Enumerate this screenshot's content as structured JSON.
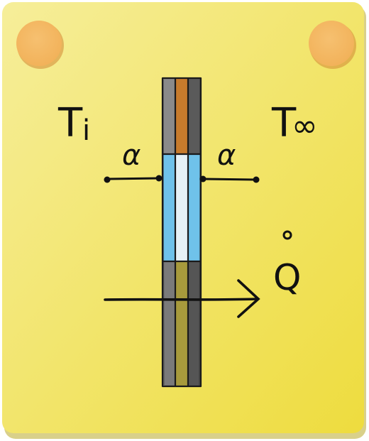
{
  "card": {
    "background_top": "#f6ee9a",
    "background_bottom": "#eedc3e",
    "shadow": "#b9a92a"
  },
  "pins": {
    "color": "#f2b25a",
    "shadow": "#d68f3a"
  },
  "labels": {
    "inside_temperature": "T",
    "inside_subscript": "i",
    "outside_temperature": "T",
    "outside_subscript": "∞",
    "heat_flow_symbol": "Q",
    "coefficient_left": "α",
    "coefficient_right": "α"
  },
  "wall_layers": {
    "upper_section": [
      "#8a8a8a",
      "#c77b2c",
      "#5a5a5a"
    ],
    "middle_section": [
      "#6fc2ea",
      "#e6f1f6",
      "#6fc2ea"
    ],
    "lower_section": [
      "#7a7a7a",
      "#a79a3c",
      "#555555"
    ]
  }
}
